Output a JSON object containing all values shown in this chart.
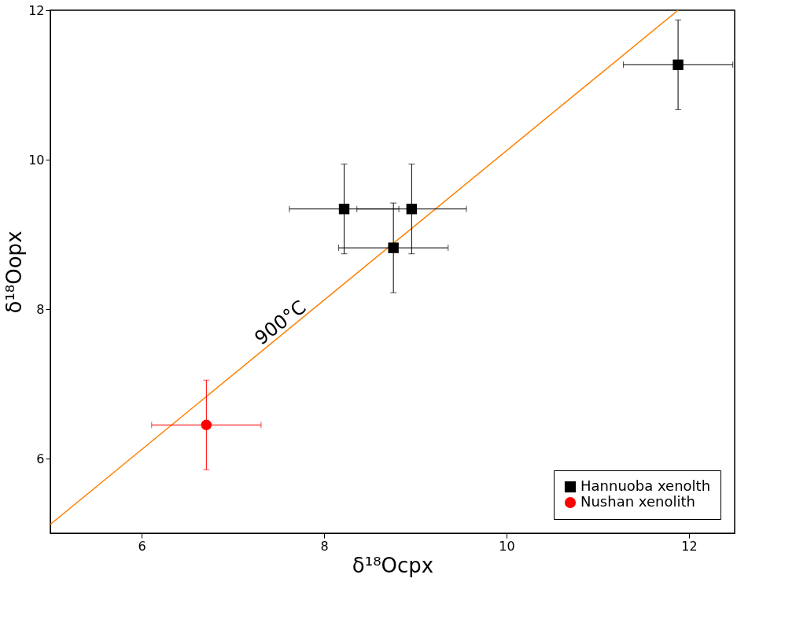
{
  "chart_data": {
    "type": "scatter",
    "xlabel": "δ¹⁸Ocpx",
    "ylabel": "δ¹⁸Oopx",
    "xlim": [
      5,
      12.5
    ],
    "ylim": [
      5,
      12
    ],
    "xticks": [
      6,
      8,
      10,
      12
    ],
    "yticks": [
      6,
      8,
      10,
      12
    ],
    "grid": false,
    "legend": "bottom right",
    "series": [
      {
        "name": "Hannuoba xenolth",
        "marker": "square",
        "color": "#000000",
        "x": [
          8.22,
          8.96,
          8.76,
          11.88
        ],
        "values": [
          9.34,
          9.34,
          8.82,
          11.27
        ],
        "errors": [
          0.6,
          0.6,
          0.6,
          0.6
        ],
        "xerrors": [
          0.6,
          0.6,
          0.6,
          0.6
        ]
      },
      {
        "name": "Nushan xenolith",
        "marker": "circle",
        "color": "#ff0000",
        "x": [
          6.71
        ],
        "values": [
          6.45
        ],
        "errors": [
          0.6
        ],
        "xerrors": [
          0.6
        ]
      },
      {
        "type": "line",
        "color": "#ff8000",
        "x": [
          5,
          11.88
        ],
        "values": [
          5.12,
          12
        ]
      }
    ],
    "annotations": [
      "900°C"
    ]
  }
}
